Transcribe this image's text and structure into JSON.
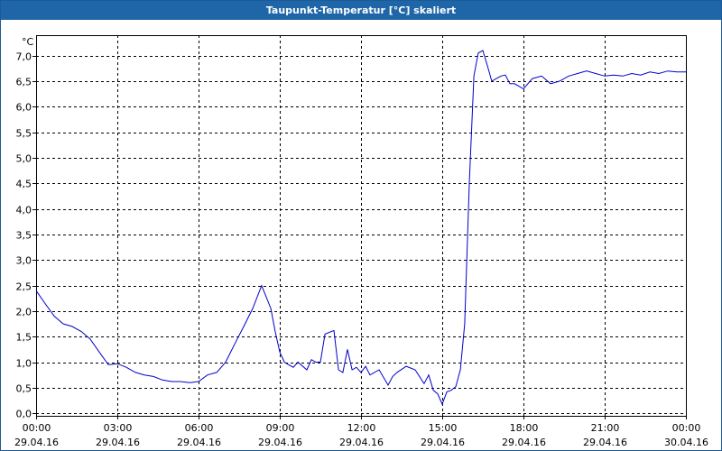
{
  "title": "Taupunkt-Temperatur [°C] skaliert",
  "colors": {
    "titlebar": "#1f66a8",
    "line": "#0000cc",
    "grid": "#000000",
    "axis": "#000000"
  },
  "chart_data": {
    "type": "line",
    "title": "Taupunkt-Temperatur [°C] skaliert",
    "ylabel": "°C",
    "xlabel": "",
    "ylim": [
      -0.05,
      7.4
    ],
    "xlim": [
      0,
      24
    ],
    "grid": true,
    "y_ticks": [
      "0,0",
      "0,5",
      "1,0",
      "1,5",
      "2,0",
      "2,5",
      "3,0",
      "3,5",
      "4,0",
      "4,5",
      "5,0",
      "5,5",
      "6,0",
      "6,5",
      "7,0"
    ],
    "x_ticks": [
      {
        "time": "00:00",
        "date": "29.04.16"
      },
      {
        "time": "03:00",
        "date": "29.04.16"
      },
      {
        "time": "06:00",
        "date": "29.04.16"
      },
      {
        "time": "09:00",
        "date": "29.04.16"
      },
      {
        "time": "12:00",
        "date": "29.04.16"
      },
      {
        "time": "15:00",
        "date": "29.04.16"
      },
      {
        "time": "18:00",
        "date": "29.04.16"
      },
      {
        "time": "21:00",
        "date": "29.04.16"
      },
      {
        "time": "00:00",
        "date": "30.04.16"
      }
    ],
    "series": [
      {
        "x": [
          0.0,
          0.33,
          0.67,
          1.0,
          1.33,
          1.67,
          2.0,
          2.33,
          2.67,
          3.0,
          3.33,
          3.67,
          4.0,
          4.33,
          4.67,
          5.0,
          5.33,
          5.67,
          6.0,
          6.33,
          6.67,
          7.0,
          7.33,
          7.67,
          8.0,
          8.33,
          8.67,
          8.83,
          9.0,
          9.17,
          9.33,
          9.5,
          9.67,
          10.0,
          10.17,
          10.33,
          10.5,
          10.67,
          11.0,
          11.17,
          11.33,
          11.5,
          11.67,
          11.83,
          12.0,
          12.17,
          12.33,
          12.67,
          13.0,
          13.17,
          13.33,
          13.67,
          14.0,
          14.33,
          14.5,
          14.67,
          14.83,
          15.0,
          15.17,
          15.33,
          15.5,
          15.67,
          15.83,
          16.0,
          16.17,
          16.33,
          16.5,
          16.67,
          16.83,
          17.0,
          17.17,
          17.33,
          17.5,
          17.67,
          18.0,
          18.33,
          18.67,
          19.0,
          19.33,
          19.67,
          20.0,
          20.33,
          20.67,
          21.0,
          21.33,
          21.67,
          22.0,
          22.33,
          22.67,
          23.0,
          23.33,
          23.67,
          24.0
        ],
        "y": [
          2.4,
          2.15,
          1.9,
          1.75,
          1.7,
          1.6,
          1.45,
          1.2,
          0.95,
          0.97,
          0.9,
          0.8,
          0.75,
          0.72,
          0.65,
          0.62,
          0.62,
          0.6,
          0.62,
          0.75,
          0.8,
          1.0,
          1.35,
          1.7,
          2.05,
          2.5,
          2.05,
          1.6,
          1.2,
          1.0,
          0.95,
          0.9,
          1.0,
          0.85,
          1.05,
          1.0,
          1.0,
          1.55,
          1.62,
          0.85,
          0.8,
          1.25,
          0.85,
          0.9,
          0.8,
          0.92,
          0.75,
          0.85,
          0.55,
          0.72,
          0.8,
          0.92,
          0.85,
          0.58,
          0.75,
          0.45,
          0.38,
          0.18,
          0.42,
          0.45,
          0.52,
          0.85,
          1.75,
          4.5,
          6.6,
          7.05,
          7.1,
          6.8,
          6.5,
          6.55,
          6.6,
          6.62,
          6.45,
          6.45,
          6.35,
          6.55,
          6.6,
          6.45,
          6.5,
          6.6,
          6.65,
          6.7,
          6.65,
          6.6,
          6.62,
          6.6,
          6.65,
          6.62,
          6.68,
          6.65,
          6.7,
          6.68,
          6.68
        ]
      }
    ]
  }
}
